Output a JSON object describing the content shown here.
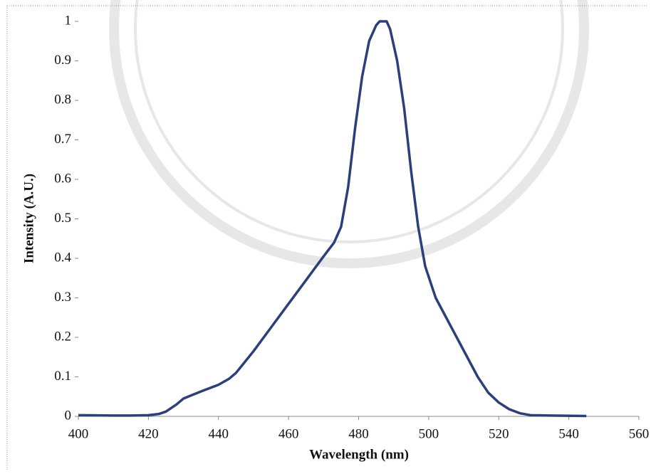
{
  "chart_data": {
    "type": "line",
    "xlabel": "Wavelength (nm)",
    "ylabel": "Intensity (A.U.)",
    "x": [
      400,
      410,
      415,
      420,
      423,
      425,
      428,
      430,
      435,
      440,
      443,
      445,
      450,
      455,
      460,
      465,
      470,
      473,
      475,
      477,
      479,
      481,
      483,
      485,
      486,
      488,
      489,
      491,
      493,
      495,
      497,
      499,
      502,
      505,
      508,
      511,
      514,
      517,
      520,
      523,
      526,
      529,
      535,
      545
    ],
    "series": [
      {
        "color": "#2b3f7a",
        "values": [
          0.003,
          0.002,
          0.002,
          0.003,
          0.006,
          0.012,
          0.03,
          0.045,
          0.063,
          0.08,
          0.095,
          0.11,
          0.165,
          0.225,
          0.285,
          0.345,
          0.405,
          0.44,
          0.48,
          0.58,
          0.73,
          0.86,
          0.95,
          0.99,
          1.0,
          1.0,
          0.98,
          0.9,
          0.78,
          0.62,
          0.48,
          0.38,
          0.3,
          0.25,
          0.2,
          0.15,
          0.1,
          0.06,
          0.035,
          0.018,
          0.008,
          0.003,
          0.002,
          0.001
        ]
      }
    ],
    "xlim": [
      400,
      560
    ],
    "xticks": [
      400,
      420,
      440,
      460,
      480,
      500,
      520,
      540,
      560
    ],
    "ylim": [
      0,
      1
    ],
    "yticks": [
      0,
      0.1,
      0.2,
      0.3,
      0.4,
      0.5,
      0.6,
      0.7,
      0.8,
      0.9,
      1
    ]
  }
}
